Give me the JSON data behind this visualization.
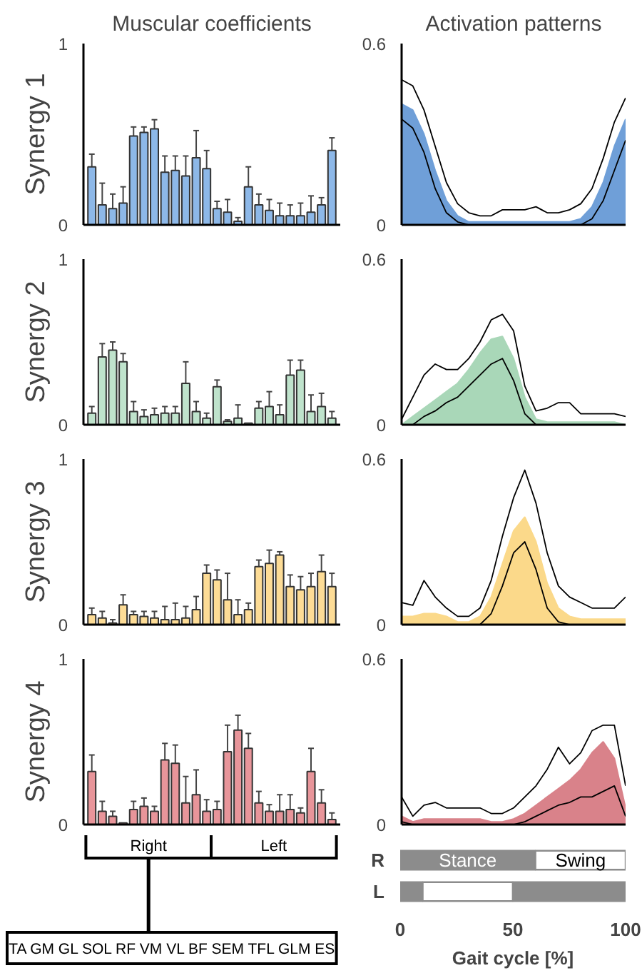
{
  "chart_data": [
    {
      "type": "bar",
      "title": "Muscular coefficients",
      "ylabel": "Synergy 1",
      "categories": [
        null,
        null,
        null,
        null,
        null,
        null,
        null,
        null,
        null,
        null,
        null,
        null,
        null,
        null,
        null,
        null,
        null,
        null,
        null,
        null,
        null,
        null,
        null,
        null
      ],
      "values": [
        0.32,
        0.11,
        0.09,
        0.12,
        0.49,
        0.51,
        0.53,
        0.29,
        0.3,
        0.27,
        0.37,
        0.31,
        0.09,
        0.07,
        0.02,
        0.21,
        0.11,
        0.08,
        0.05,
        0.05,
        0.05,
        0.07,
        0.11,
        0.41
      ],
      "errors": [
        0.07,
        0.12,
        0.08,
        0.09,
        0.05,
        0.03,
        0.05,
        0.09,
        0.08,
        0.11,
        0.15,
        0.1,
        0.04,
        0.07,
        0.02,
        0.11,
        0.06,
        0.06,
        0.07,
        0.06,
        0.07,
        0.09,
        0.04,
        0.07
      ],
      "color": "#8db8e8",
      "ylim": [
        0,
        1
      ],
      "yticks": [
        0,
        1
      ],
      "tick_labels": "y"
    },
    {
      "type": "area",
      "title": "Activation patterns",
      "x": [
        0,
        5,
        10,
        15,
        20,
        25,
        30,
        35,
        40,
        45,
        50,
        55,
        60,
        65,
        70,
        75,
        80,
        85,
        90,
        95,
        100
      ],
      "series": [
        {
          "color": "#6f9fd8",
          "values": [
            0.4,
            0.38,
            0.3,
            0.18,
            0.08,
            0.03,
            0.01,
            0.01,
            0.01,
            0.01,
            0.01,
            0.01,
            0.01,
            0.01,
            0.01,
            0.01,
            0.02,
            0.06,
            0.14,
            0.26,
            0.35
          ]
        },
        {
          "type": "line",
          "color": "#000000",
          "values": [
            0.35,
            0.32,
            0.24,
            0.12,
            0.04,
            0.01,
            0,
            0,
            0,
            0,
            0,
            0,
            0,
            0,
            0,
            0,
            0,
            0.02,
            0.08,
            0.18,
            0.28
          ]
        },
        {
          "type": "line",
          "color": "#000000",
          "values": [
            0.48,
            0.46,
            0.38,
            0.26,
            0.14,
            0.07,
            0.04,
            0.03,
            0.03,
            0.05,
            0.05,
            0.05,
            0.06,
            0.04,
            0.04,
            0.05,
            0.07,
            0.12,
            0.22,
            0.34,
            0.42
          ]
        }
      ],
      "xlim": [
        0,
        100
      ],
      "ylim": [
        0,
        0.6
      ],
      "yticks": [
        0,
        0.6
      ],
      "tick_labels": "y"
    },
    {
      "type": "bar",
      "ylabel": "Synergy 2",
      "categories": [
        null,
        null,
        null,
        null,
        null,
        null,
        null,
        null,
        null,
        null,
        null,
        null,
        null,
        null,
        null,
        null,
        null,
        null,
        null,
        null,
        null,
        null,
        null,
        null
      ],
      "values": [
        0.07,
        0.41,
        0.45,
        0.38,
        0.08,
        0.05,
        0.06,
        0.07,
        0.07,
        0.25,
        0.08,
        0.04,
        0.23,
        0.02,
        0.04,
        0.01,
        0.1,
        0.11,
        0.06,
        0.3,
        0.33,
        0.08,
        0.11,
        0.04
      ],
      "errors": [
        0.04,
        0.08,
        0.05,
        0.05,
        0.06,
        0.04,
        0.04,
        0.04,
        0.04,
        0.13,
        0.06,
        0.03,
        0.04,
        0.01,
        0.08,
        null,
        0.04,
        0.09,
        0.06,
        0.09,
        0.06,
        0.1,
        0.08,
        0.04
      ],
      "color": "#bfe3cc",
      "ylim": [
        0,
        1
      ],
      "yticks": [
        0,
        1
      ],
      "tick_labels": "y"
    },
    {
      "type": "area",
      "x": [
        0,
        5,
        10,
        15,
        20,
        25,
        30,
        35,
        40,
        45,
        50,
        55,
        60,
        65,
        70,
        75,
        80,
        85,
        90,
        95,
        100
      ],
      "series": [
        {
          "color": "#a9d7b8",
          "values": [
            0,
            0.03,
            0.06,
            0.09,
            0.12,
            0.15,
            0.2,
            0.26,
            0.31,
            0.32,
            0.24,
            0.1,
            0.02,
            0.01,
            0.01,
            0.01,
            0.01,
            0.01,
            0.01,
            0.01,
            0
          ]
        },
        {
          "type": "line",
          "color": "#000000",
          "values": [
            0,
            0,
            0.03,
            0.05,
            0.08,
            0.1,
            0.14,
            0.18,
            0.22,
            0.24,
            0.16,
            0.04,
            0,
            0,
            0,
            0,
            0,
            0,
            0,
            0,
            0
          ]
        },
        {
          "type": "line",
          "color": "#000000",
          "values": [
            0.02,
            0.1,
            0.18,
            0.22,
            0.2,
            0.2,
            0.24,
            0.3,
            0.38,
            0.4,
            0.34,
            0.14,
            0.05,
            0.06,
            0.08,
            0.08,
            0.04,
            0.04,
            0.04,
            0.04,
            0.03
          ]
        }
      ],
      "xlim": [
        0,
        100
      ],
      "ylim": [
        0,
        0.6
      ],
      "yticks": [
        0,
        0.6
      ],
      "tick_labels": "y"
    },
    {
      "type": "bar",
      "ylabel": "Synergy 3",
      "categories": [
        null,
        null,
        null,
        null,
        null,
        null,
        null,
        null,
        null,
        null,
        null,
        null,
        null,
        null,
        null,
        null,
        null,
        null,
        null,
        null,
        null,
        null,
        null,
        null
      ],
      "values": [
        0.06,
        0.04,
        0.01,
        0.12,
        0.06,
        0.05,
        0.04,
        0.03,
        0.03,
        0.04,
        0.09,
        0.31,
        0.27,
        0.15,
        0.06,
        0.09,
        0.35,
        0.37,
        0.42,
        0.23,
        0.21,
        0.23,
        0.32,
        0.23
      ],
      "errors": [
        0.04,
        0.04,
        0.02,
        0.06,
        0.02,
        0.03,
        0.04,
        0.08,
        0.1,
        0.07,
        0.08,
        0.05,
        0.06,
        0.16,
        0.09,
        0.04,
        0.04,
        0.08,
        0.02,
        0.07,
        0.08,
        0.08,
        0.1,
        0.08
      ],
      "color": "#fddc96",
      "ylim": [
        0,
        1
      ],
      "yticks": [
        0,
        1
      ],
      "tick_labels": "y"
    },
    {
      "type": "area",
      "x": [
        0,
        5,
        10,
        15,
        20,
        25,
        30,
        35,
        40,
        45,
        50,
        55,
        60,
        65,
        70,
        75,
        80,
        85,
        90,
        95,
        100
      ],
      "series": [
        {
          "color": "#fbd98a",
          "values": [
            0.03,
            0.03,
            0.04,
            0.04,
            0.03,
            0.01,
            0.01,
            0.03,
            0.1,
            0.22,
            0.34,
            0.39,
            0.3,
            0.15,
            0.06,
            0.03,
            0.02,
            0.02,
            0.02,
            0.02,
            0.02
          ]
        },
        {
          "type": "line",
          "color": "#000000",
          "values": [
            0,
            0,
            0,
            0,
            0,
            0,
            0,
            0,
            0.04,
            0.14,
            0.26,
            0.3,
            0.2,
            0.06,
            0.01,
            0,
            0,
            0,
            0,
            0,
            0
          ]
        },
        {
          "type": "line",
          "color": "#000000",
          "values": [
            0.08,
            0.07,
            0.16,
            0.1,
            0.06,
            0.03,
            0.03,
            0.06,
            0.16,
            0.32,
            0.46,
            0.56,
            0.44,
            0.26,
            0.14,
            0.1,
            0.08,
            0.06,
            0.06,
            0.06,
            0.1
          ]
        }
      ],
      "xlim": [
        0,
        100
      ],
      "ylim": [
        0,
        0.6
      ],
      "yticks": [
        0,
        0.6
      ],
      "tick_labels": "y"
    },
    {
      "type": "bar",
      "ylabel": "Synergy 4",
      "categories": [
        null,
        null,
        null,
        null,
        null,
        null,
        null,
        null,
        null,
        null,
        null,
        null,
        null,
        null,
        null,
        null,
        null,
        null,
        null,
        null,
        null,
        null,
        null,
        null
      ],
      "values": [
        0.32,
        0.08,
        0.05,
        0.01,
        0.09,
        0.11,
        0.08,
        0.39,
        0.37,
        0.13,
        0.18,
        0.08,
        0.09,
        0.44,
        0.57,
        0.46,
        0.13,
        0.08,
        0.08,
        0.09,
        0.07,
        0.32,
        0.13,
        0.03
      ],
      "errors": [
        0.1,
        0.06,
        0.03,
        null,
        0.05,
        0.05,
        0.03,
        0.1,
        0.11,
        0.16,
        0.15,
        0.07,
        0.05,
        0.16,
        0.09,
        0.09,
        0.07,
        0.04,
        0.1,
        0.09,
        0.03,
        0.14,
        0.08,
        0.04
      ],
      "color": "#e8959a",
      "ylim": [
        0,
        1
      ],
      "yticks": [
        0,
        1
      ],
      "tick_labels": "y",
      "annotations": [
        "Right",
        "Left",
        "TA GM GL SOL RF VM VL BF SEM TFL GLM ES"
      ]
    },
    {
      "type": "area",
      "x": [
        0,
        5,
        10,
        15,
        20,
        25,
        30,
        35,
        40,
        45,
        50,
        55,
        60,
        65,
        70,
        75,
        80,
        85,
        90,
        95,
        100
      ],
      "series": [
        {
          "color": "#d9828a",
          "values": [
            0.03,
            0.01,
            0.02,
            0.02,
            0.02,
            0.02,
            0.02,
            0.02,
            0.01,
            0.01,
            0.02,
            0.04,
            0.07,
            0.1,
            0.13,
            0.16,
            0.2,
            0.26,
            0.3,
            0.24,
            0.06
          ]
        },
        {
          "type": "line",
          "color": "#000000",
          "values": [
            0.01,
            0,
            0,
            0,
            0,
            0,
            0,
            0,
            0,
            0,
            0,
            0.01,
            0.03,
            0.05,
            0.07,
            0.08,
            0.1,
            0.1,
            0.12,
            0.14,
            0.03
          ]
        },
        {
          "type": "line",
          "color": "#000000",
          "values": [
            0.1,
            0.03,
            0.07,
            0.08,
            0.06,
            0.06,
            0.06,
            0.06,
            0.04,
            0.04,
            0.06,
            0.1,
            0.14,
            0.2,
            0.28,
            0.22,
            0.26,
            0.34,
            0.36,
            0.36,
            0.14
          ]
        }
      ],
      "xlim": [
        0,
        100
      ],
      "ylim": [
        0,
        0.6
      ],
      "yticks": [
        0,
        0.6
      ],
      "tick_labels": "y"
    },
    {
      "type": "bar",
      "orientation": "horizontal",
      "stacked": true,
      "categories": [
        "R",
        "L"
      ],
      "series": [
        {
          "color": "#8c8c8c",
          "values": [
            60,
            10
          ],
          "value_labels": [
            "Stance",
            null
          ]
        },
        {
          "color": "#ffffff",
          "values": [
            40,
            40
          ],
          "value_labels": [
            "Swing",
            null
          ]
        },
        {
          "color": "#8c8c8c",
          "values": [
            null,
            50
          ]
        }
      ],
      "xlim": [
        0,
        100
      ],
      "xticks": [
        0,
        50,
        100
      ],
      "xlabel": "Gait cycle [%]"
    }
  ]
}
